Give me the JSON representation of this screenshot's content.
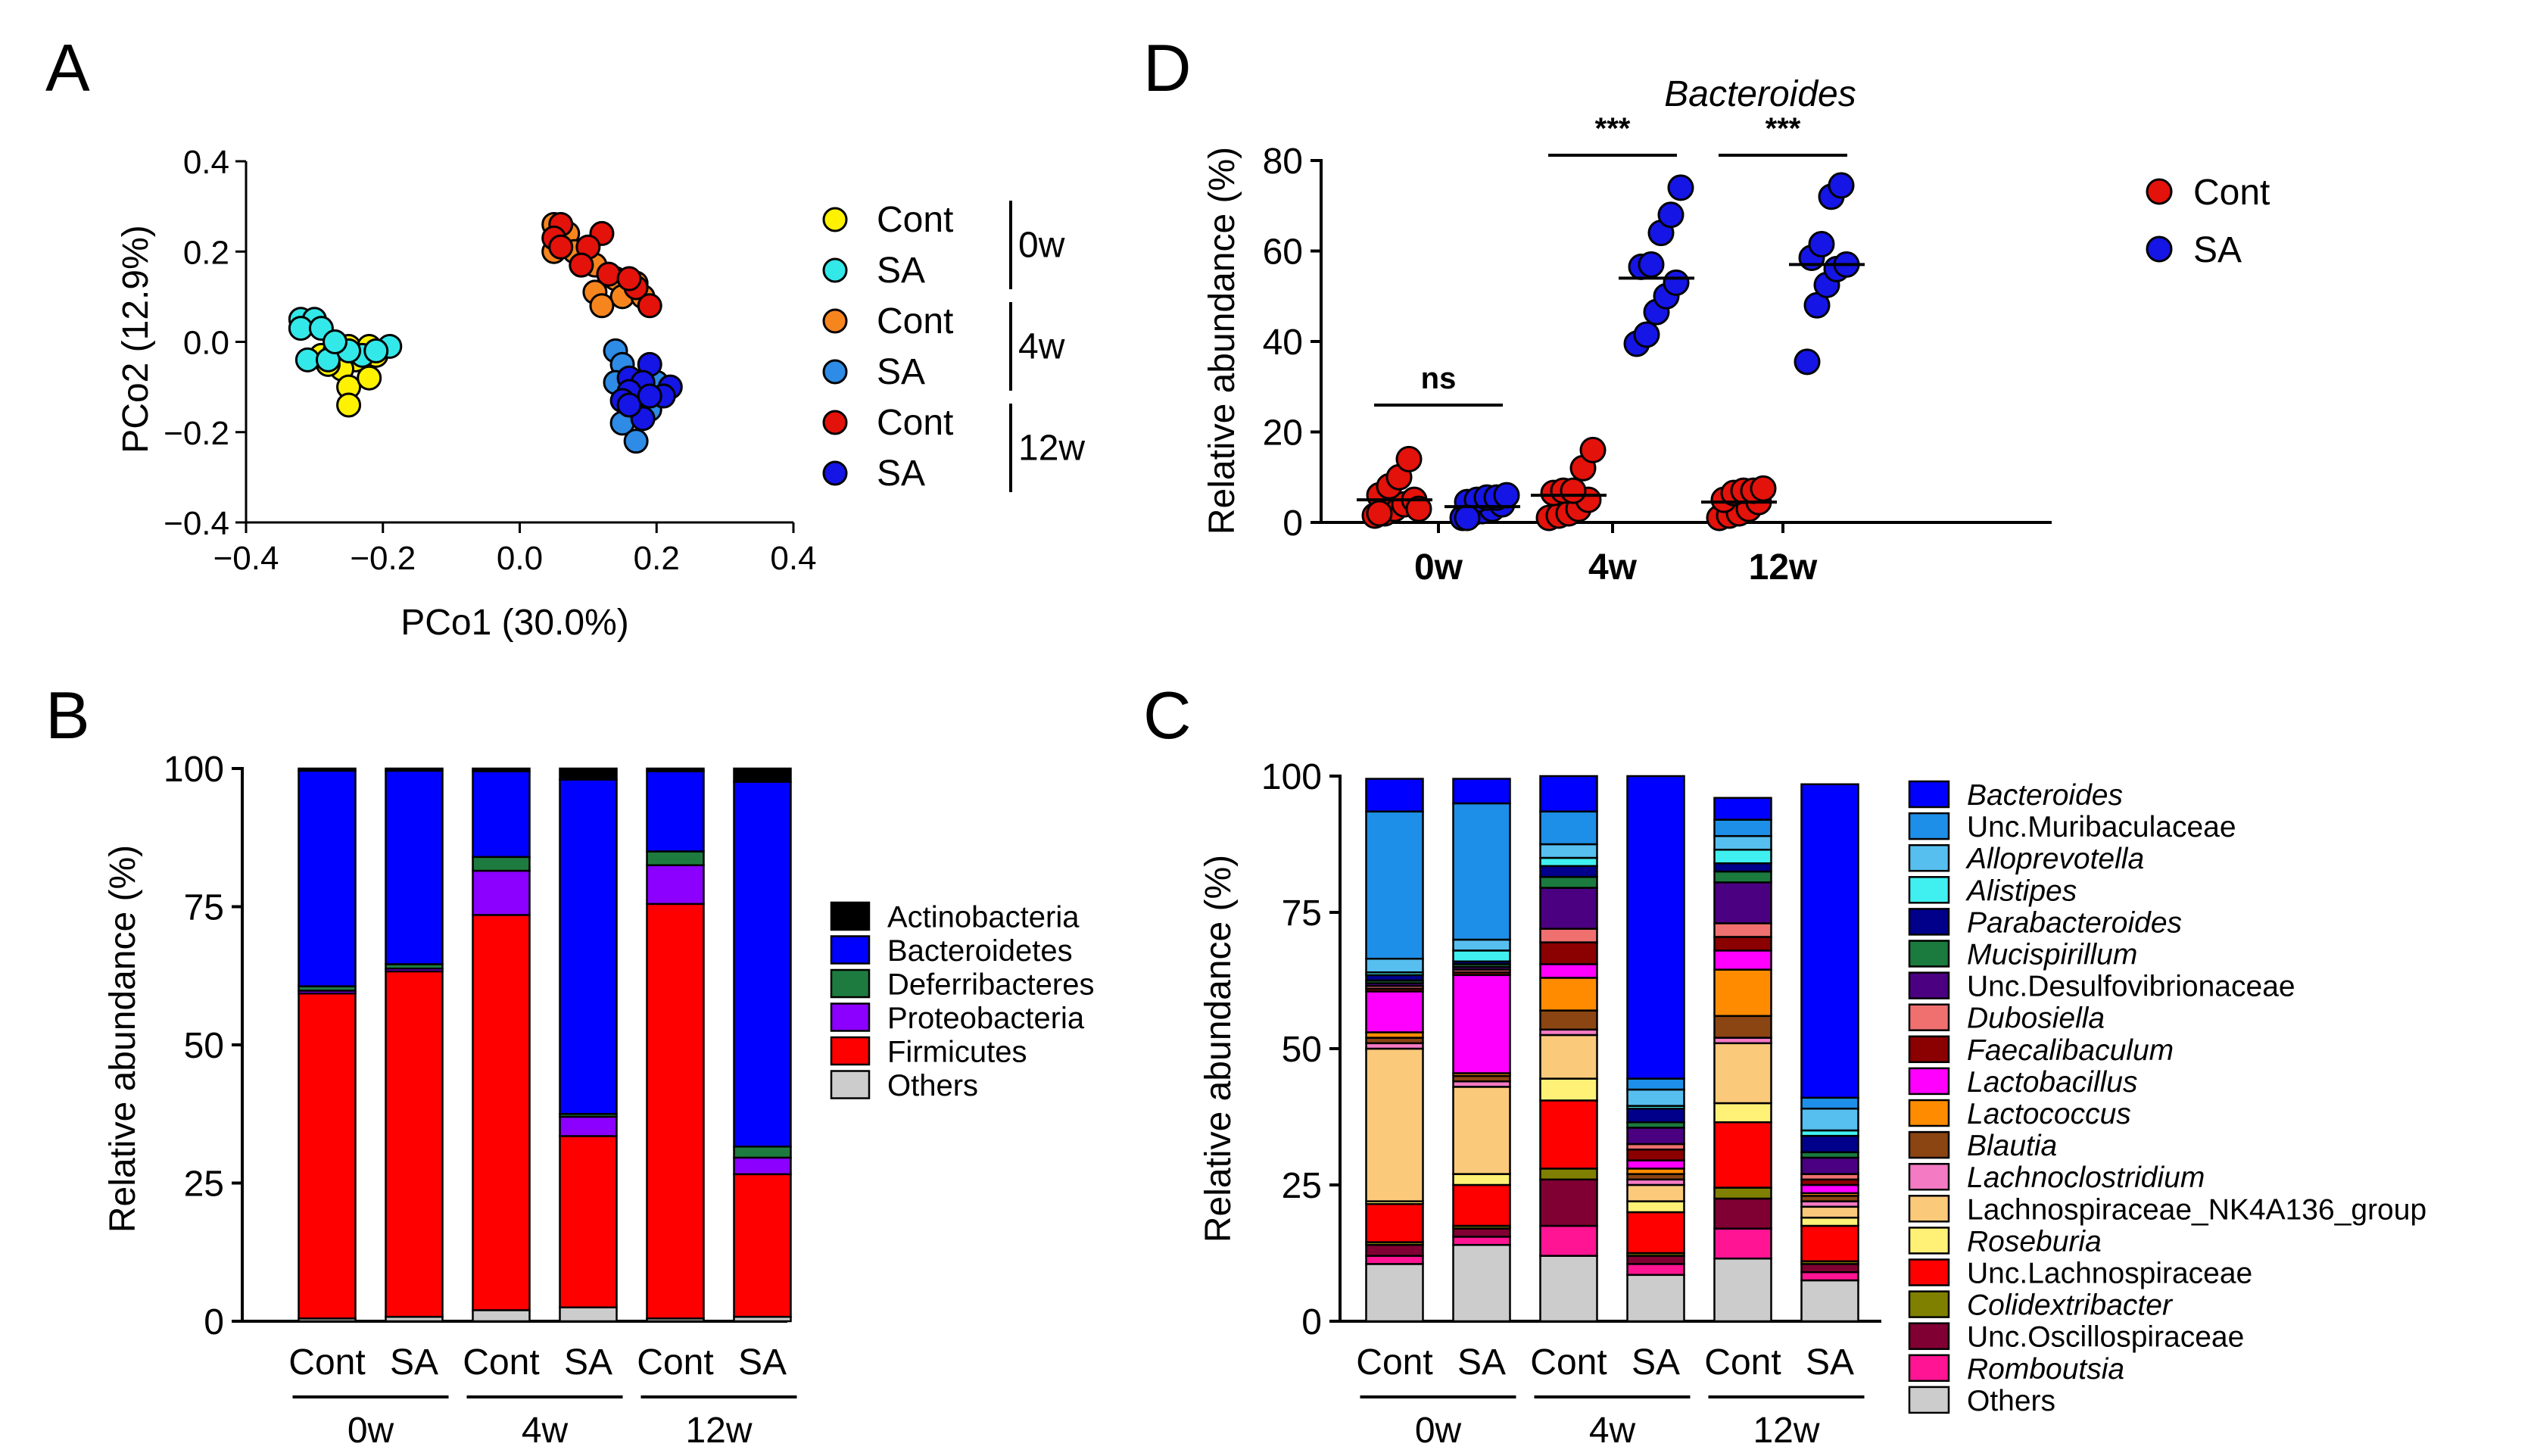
{
  "panels": {
    "A": {
      "letter": "A",
      "xlabel": "PCo1 (30.0%)",
      "ylabel": "PCo2 (12.9%)",
      "xticks": [
        "−0.4",
        "−0.2",
        "0.0",
        "0.2",
        "0.4"
      ],
      "yticks": [
        "−0.4",
        "−0.2",
        "0.0",
        "0.2",
        "0.4"
      ],
      "legend": {
        "items": [
          {
            "label": "Cont",
            "color": "#FFF200"
          },
          {
            "label": "SA",
            "color": "#33E8E8"
          },
          {
            "label": "Cont",
            "color": "#F7851E"
          },
          {
            "label": "SA",
            "color": "#2E8BE6"
          },
          {
            "label": "Cont",
            "color": "#E3120B"
          },
          {
            "label": "SA",
            "color": "#1515E6"
          }
        ],
        "groups": [
          "0w",
          "4w",
          "12w"
        ]
      }
    },
    "B": {
      "letter": "B",
      "ylabel": "Relative abundance (%)",
      "yticks": [
        "0",
        "25",
        "50",
        "75",
        "100"
      ],
      "xlabels": [
        "Cont",
        "SA",
        "Cont",
        "SA",
        "Cont",
        "SA"
      ],
      "groups": [
        "0w",
        "4w",
        "12w"
      ]
    },
    "C": {
      "letter": "C",
      "ylabel": "Relative abundance (%)",
      "yticks": [
        "0",
        "25",
        "50",
        "75",
        "100"
      ],
      "xlabels": [
        "Cont",
        "SA",
        "Cont",
        "SA",
        "Cont",
        "SA"
      ],
      "groups": [
        "0w",
        "4w",
        "12w"
      ]
    },
    "D": {
      "letter": "D",
      "title": "Bacteroides",
      "ylabel": "Relative abundance (%)",
      "yticks": [
        "0",
        "20",
        "40",
        "60",
        "80"
      ],
      "xlabels": [
        "0w",
        "4w",
        "12w"
      ],
      "sig": [
        "ns",
        "***",
        "***"
      ],
      "legend": [
        {
          "label": "Cont",
          "color": "#E3120B"
        },
        {
          "label": "SA",
          "color": "#1515E6"
        }
      ]
    }
  },
  "chart_data": [
    {
      "panel": "A",
      "type": "scatter",
      "xlabel": "PCo1 (30.0%)",
      "ylabel": "PCo2 (12.9%)",
      "xlim": [
        -0.4,
        0.4
      ],
      "ylim": [
        -0.4,
        0.4
      ],
      "series": [
        {
          "name": "Cont 0w",
          "color": "#FFF200",
          "points": [
            [
              -0.29,
              -0.03
            ],
            [
              -0.27,
              -0.02
            ],
            [
              -0.25,
              -0.01
            ],
            [
              -0.24,
              -0.04
            ],
            [
              -0.26,
              -0.06
            ],
            [
              -0.22,
              -0.01
            ],
            [
              -0.21,
              -0.03
            ],
            [
              -0.25,
              -0.1
            ],
            [
              -0.22,
              -0.08
            ],
            [
              -0.25,
              -0.14
            ],
            [
              -0.28,
              -0.05
            ]
          ]
        },
        {
          "name": "SA 0w",
          "color": "#33E8E8",
          "points": [
            [
              -0.32,
              0.05
            ],
            [
              -0.3,
              0.05
            ],
            [
              -0.32,
              0.03
            ],
            [
              -0.29,
              0.03
            ],
            [
              -0.31,
              -0.04
            ],
            [
              -0.28,
              -0.04
            ],
            [
              -0.23,
              -0.03
            ],
            [
              -0.19,
              -0.01
            ],
            [
              -0.25,
              -0.02
            ],
            [
              -0.21,
              -0.02
            ],
            [
              -0.27,
              0.0
            ]
          ]
        },
        {
          "name": "Cont 4w",
          "color": "#F7851E",
          "points": [
            [
              0.05,
              0.26
            ],
            [
              0.07,
              0.24
            ],
            [
              0.08,
              0.2
            ],
            [
              0.05,
              0.2
            ],
            [
              0.11,
              0.17
            ],
            [
              0.09,
              0.17
            ],
            [
              0.14,
              0.14
            ],
            [
              0.17,
              0.13
            ],
            [
              0.11,
              0.11
            ],
            [
              0.15,
              0.1
            ],
            [
              0.18,
              0.1
            ],
            [
              0.12,
              0.08
            ]
          ]
        },
        {
          "name": "SA 4w",
          "color": "#2E8BE6",
          "points": [
            [
              0.14,
              -0.02
            ],
            [
              0.15,
              -0.05
            ],
            [
              0.14,
              -0.09
            ],
            [
              0.17,
              -0.11
            ],
            [
              0.16,
              -0.14
            ],
            [
              0.19,
              -0.15
            ],
            [
              0.15,
              -0.18
            ],
            [
              0.17,
              -0.22
            ],
            [
              0.2,
              -0.09
            ],
            [
              0.17,
              -0.12
            ]
          ]
        },
        {
          "name": "Cont 12w",
          "color": "#E3120B",
          "points": [
            [
              0.06,
              0.26
            ],
            [
              0.05,
              0.23
            ],
            [
              0.12,
              0.24
            ],
            [
              0.06,
              0.21
            ],
            [
              0.1,
              0.21
            ],
            [
              0.13,
              0.15
            ],
            [
              0.17,
              0.12
            ],
            [
              0.19,
              0.08
            ],
            [
              0.09,
              0.17
            ],
            [
              0.16,
              0.14
            ]
          ]
        },
        {
          "name": "SA 12w",
          "color": "#1515E6",
          "points": [
            [
              0.19,
              -0.05
            ],
            [
              0.16,
              -0.08
            ],
            [
              0.22,
              -0.1
            ],
            [
              0.18,
              -0.09
            ],
            [
              0.21,
              -0.12
            ],
            [
              0.16,
              -0.11
            ],
            [
              0.15,
              -0.13
            ],
            [
              0.18,
              -0.17
            ],
            [
              0.16,
              -0.14
            ],
            [
              0.19,
              -0.12
            ]
          ]
        }
      ]
    },
    {
      "panel": "B",
      "type": "bar",
      "stacked": true,
      "ylabel": "Relative abundance (%)",
      "ylim": [
        0,
        100
      ],
      "categories": [
        "Cont",
        "SA",
        "Cont",
        "SA",
        "Cont",
        "SA"
      ],
      "series": [
        {
          "name": "Others",
          "color": "#CCCCCC",
          "values": [
            0.5,
            0.8,
            2.0,
            2.5,
            0.5,
            0.8
          ]
        },
        {
          "name": "Firmicutes",
          "color": "#FF0000",
          "values": [
            58.8,
            62.5,
            71.5,
            31.0,
            75.0,
            25.8
          ]
        },
        {
          "name": "Proteobacteria",
          "color": "#8B00FF",
          "values": [
            0.5,
            0.5,
            8.0,
            3.5,
            7.0,
            3.0
          ]
        },
        {
          "name": "Deferribacteres",
          "color": "#1E7B3F",
          "values": [
            0.8,
            0.8,
            2.5,
            0.5,
            2.5,
            2.0
          ]
        },
        {
          "name": "Bacteroidetes",
          "color": "#0000FF",
          "values": [
            39.0,
            35.0,
            15.5,
            60.5,
            14.5,
            66.0
          ]
        },
        {
          "name": "Actinobacteria",
          "color": "#000000",
          "values": [
            0.4,
            0.4,
            0.5,
            2.0,
            0.5,
            2.4
          ]
        }
      ]
    },
    {
      "panel": "C",
      "type": "bar",
      "stacked": true,
      "ylabel": "Relative abundance (%)",
      "ylim": [
        0,
        100
      ],
      "categories": [
        "Cont",
        "SA",
        "Cont",
        "SA",
        "Cont",
        "SA"
      ],
      "series": [
        {
          "name": "Others",
          "color": "#CCCCCC",
          "values": [
            10.5,
            14.0,
            12.0,
            8.5,
            11.5,
            7.5
          ]
        },
        {
          "name": "Romboutsia",
          "color": "#FF1493",
          "values": [
            1.5,
            1.5,
            5.5,
            2.0,
            5.5,
            1.5
          ]
        },
        {
          "name": "Unc.Oscillospiraceae",
          "color": "#800033",
          "values": [
            2.0,
            1.5,
            8.5,
            1.5,
            5.5,
            1.5
          ]
        },
        {
          "name": "Colidextribacter",
          "color": "#808000",
          "values": [
            0.5,
            0.5,
            2.0,
            0.5,
            2.0,
            0.5
          ]
        },
        {
          "name": "Unc.Lachnospiraceae",
          "color": "#FF0000",
          "values": [
            7.0,
            7.5,
            12.5,
            7.5,
            12.0,
            6.5
          ]
        },
        {
          "name": "Roseburia",
          "color": "#FFF176",
          "values": [
            0.5,
            2.0,
            4.0,
            2.0,
            3.5,
            1.5
          ]
        },
        {
          "name": "Lachnospiraceae_NK4A136_group",
          "color": "#FAC97A",
          "values": [
            28.0,
            16.0,
            8.0,
            3.0,
            11.0,
            2.0
          ]
        },
        {
          "name": "Lachnoclostridium",
          "color": "#F47AC3",
          "values": [
            1.0,
            1.0,
            1.0,
            1.0,
            1.0,
            1.0
          ]
        },
        {
          "name": "Blautia",
          "color": "#8B4513",
          "values": [
            1.0,
            1.0,
            3.5,
            1.0,
            4.0,
            1.0
          ]
        },
        {
          "name": "Lactococcus",
          "color": "#FF8C00",
          "values": [
            1.0,
            0.5,
            6.0,
            1.0,
            8.5,
            0.5
          ]
        },
        {
          "name": "Lactobacillus",
          "color": "#FF00FF",
          "values": [
            7.5,
            18.0,
            2.5,
            1.5,
            3.5,
            1.5
          ]
        },
        {
          "name": "Faecalibaculum",
          "color": "#8B0000",
          "values": [
            0.5,
            0.5,
            4.0,
            2.0,
            2.5,
            1.0
          ]
        },
        {
          "name": "Dubosiella",
          "color": "#F07070",
          "values": [
            0.5,
            0.5,
            2.5,
            1.0,
            2.5,
            1.0
          ]
        },
        {
          "name": "Unc.Desulfovibrionaceae",
          "color": "#4B0082",
          "values": [
            0.5,
            0.5,
            7.5,
            3.0,
            7.5,
            3.0
          ]
        },
        {
          "name": "Mucispirillum",
          "color": "#1B7A3E",
          "values": [
            0.5,
            0.5,
            2.0,
            1.0,
            2.0,
            1.0
          ]
        },
        {
          "name": "Parabacteroides",
          "color": "#00008B",
          "values": [
            1.0,
            0.5,
            2.0,
            2.5,
            1.5,
            3.0
          ]
        },
        {
          "name": "Alistipes",
          "color": "#40F0F0",
          "values": [
            0.5,
            2.0,
            1.5,
            0.5,
            2.5,
            1.0
          ]
        },
        {
          "name": "Alloprevotella",
          "color": "#57BFF0",
          "values": [
            2.5,
            2.0,
            2.5,
            3.0,
            2.5,
            4.0
          ]
        },
        {
          "name": "Unc.Muribaculaceae",
          "color": "#1E8FE8",
          "values": [
            27.0,
            25.0,
            6.0,
            2.0,
            3.0,
            2.0
          ]
        },
        {
          "name": "Bacteroides",
          "color": "#0000FF",
          "values": [
            6.0,
            4.5,
            6.5,
            55.5,
            4.0,
            57.5
          ]
        }
      ]
    },
    {
      "panel": "D",
      "type": "scatter",
      "title": "Bacteroides",
      "ylabel": "Relative abundance (%)",
      "ylim": [
        0,
        80
      ],
      "categories": [
        "0w",
        "4w",
        "12w"
      ],
      "series": [
        {
          "name": "Cont",
          "color": "#E3120B",
          "groups": [
            [
              1.5,
              2.0,
              3.0,
              4.0,
              5.0,
              6.0,
              8.0,
              10.0,
              14.0,
              3.0,
              2.0
            ],
            [
              1.0,
              1.5,
              2.0,
              3.0,
              5.0,
              6.5,
              7.0,
              7.0,
              12.0,
              16.0
            ],
            [
              1.0,
              1.5,
              2.0,
              3.0,
              4.5,
              5.0,
              6.5,
              7.0,
              7.0,
              7.5
            ]
          ],
          "medians": [
            5.0,
            6.0,
            4.5
          ]
        },
        {
          "name": "SA",
          "color": "#1515E6",
          "groups": [
            [
              1.0,
              2.0,
              2.5,
              3.0,
              4.0,
              4.5,
              5.0,
              5.5,
              5.5,
              6.0,
              1.0
            ],
            [
              39.5,
              41.5,
              46.5,
              50.0,
              53.0,
              56.5,
              57.0,
              64.0,
              68.0,
              74.0
            ],
            [
              35.5,
              48.0,
              52.5,
              56.0,
              57.0,
              58.5,
              61.5,
              72.0,
              74.5
            ]
          ],
          "medians": [
            3.5,
            54.0,
            57.0
          ],
          "significance": [
            "ns",
            "***",
            "***"
          ]
        }
      ]
    }
  ]
}
